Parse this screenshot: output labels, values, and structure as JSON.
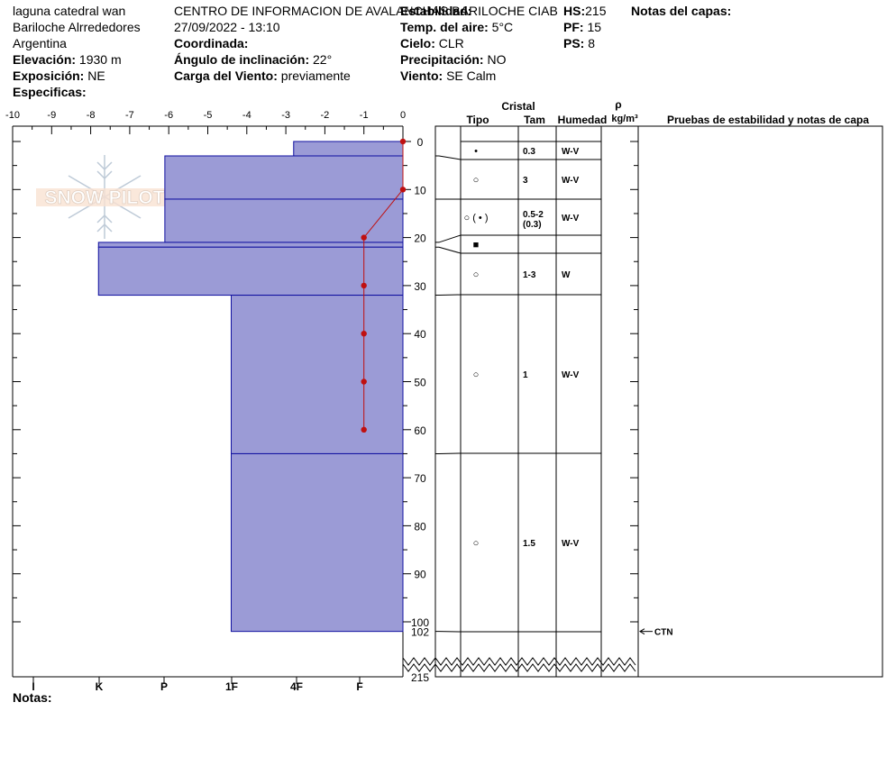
{
  "header": {
    "location": "laguna catedral wan",
    "region": "Bariloche Alrrededores",
    "country": "Argentina",
    "elevation_label": "Elevación:",
    "elevation_value": "1930 m",
    "aspect_label": "Exposición:",
    "aspect_value": "NE",
    "specifics_label": "Especificas:",
    "org": "CENTRO DE INFORMACION DE AVALANCHAS BARILOCHE CIAB",
    "datetime": "27/09/2022 - 13:10",
    "coord_label": "Coordinada:",
    "slope_label": "Ángulo de inclinación:",
    "slope_value": "22°",
    "windload_label": "Carga del Viento:",
    "windload_value": "previamente",
    "stability_label": "Estabilidad:",
    "airtemp_label": "Temp. del aire:",
    "airtemp_value": "5°C",
    "sky_label": "Cielo:",
    "sky_value": "CLR",
    "precip_label": "Precipitación:",
    "precip_value": "NO",
    "wind_label": "Viento:",
    "wind_value": "SE Calm",
    "hs_label": "HS:",
    "hs_value": "215",
    "pf_label": "PF:",
    "pf_value": "15",
    "ps_label": "PS:",
    "ps_value": "8",
    "layer_notes_label": "Notas del capas:",
    "notes_label": "Notas:"
  },
  "table_headers": {
    "cristal": "Cristal",
    "tipo": "Tipo",
    "tam": "Tam",
    "humedad": "Humedad",
    "rho": "ρ",
    "rho_unit": "kg/m³",
    "tests": "Pruebas de estabilidad y notas de capa"
  },
  "logo_text": "SNOW PILOT",
  "ctn_label": "CTN",
  "colors": {
    "layer_fill": "#9b9bd6",
    "layer_stroke": "#1010a0",
    "temp": "#c01010"
  },
  "chart_data": {
    "type": "snow_profile",
    "x_temp_ticks": [
      "-10",
      "-9",
      "-8",
      "-7",
      "-6",
      "-5",
      "-4",
      "-3",
      "-2",
      "-1",
      "0"
    ],
    "hardness_ticks": [
      "I",
      "K",
      "P",
      "1F",
      "4F",
      "F"
    ],
    "depth_ticks": [
      "0",
      "10",
      "20",
      "30",
      "40",
      "50",
      "60",
      "70",
      "80",
      "90",
      "100"
    ],
    "depth_ylim": [
      0,
      102
    ],
    "total_depth_label": "215",
    "bottom_depth_label": "102",
    "layers": [
      {
        "top": 0,
        "bottom": 3,
        "hardness": -2.8,
        "tipo": "•",
        "tam": "0.3",
        "hum": "W-V"
      },
      {
        "top": 3,
        "bottom": 12,
        "hardness": -6.1,
        "tipo": "○",
        "tam": "3",
        "hum": "W-V"
      },
      {
        "top": 12,
        "bottom": 21,
        "hardness": -6.1,
        "tipo": "○ ( • )",
        "tam": "0.5-2",
        "tam2": "(0.3)",
        "hum": "W-V"
      },
      {
        "top": 21,
        "bottom": 22,
        "hardness": -7.8,
        "tipo": "■",
        "tam": "",
        "hum": ""
      },
      {
        "top": 22,
        "bottom": 32,
        "hardness": -7.8,
        "tipo": "○",
        "tam": "1-3",
        "hum": "W"
      },
      {
        "top": 32,
        "bottom": 65,
        "hardness": -4.4,
        "tipo": "○",
        "tam": "1",
        "hum": "W-V"
      },
      {
        "top": 65,
        "bottom": 102,
        "hardness": -4.4,
        "tipo": "○",
        "tam": "1.5",
        "hum": "W-V"
      }
    ],
    "temperature": [
      {
        "depth": 0,
        "temp": 0
      },
      {
        "depth": 10,
        "temp": 0
      },
      {
        "depth": 20,
        "temp": -1
      },
      {
        "depth": 30,
        "temp": -1
      },
      {
        "depth": 40,
        "temp": -1
      },
      {
        "depth": 50,
        "temp": -1
      },
      {
        "depth": 60,
        "temp": -1
      }
    ],
    "ctn_depth": 102
  }
}
